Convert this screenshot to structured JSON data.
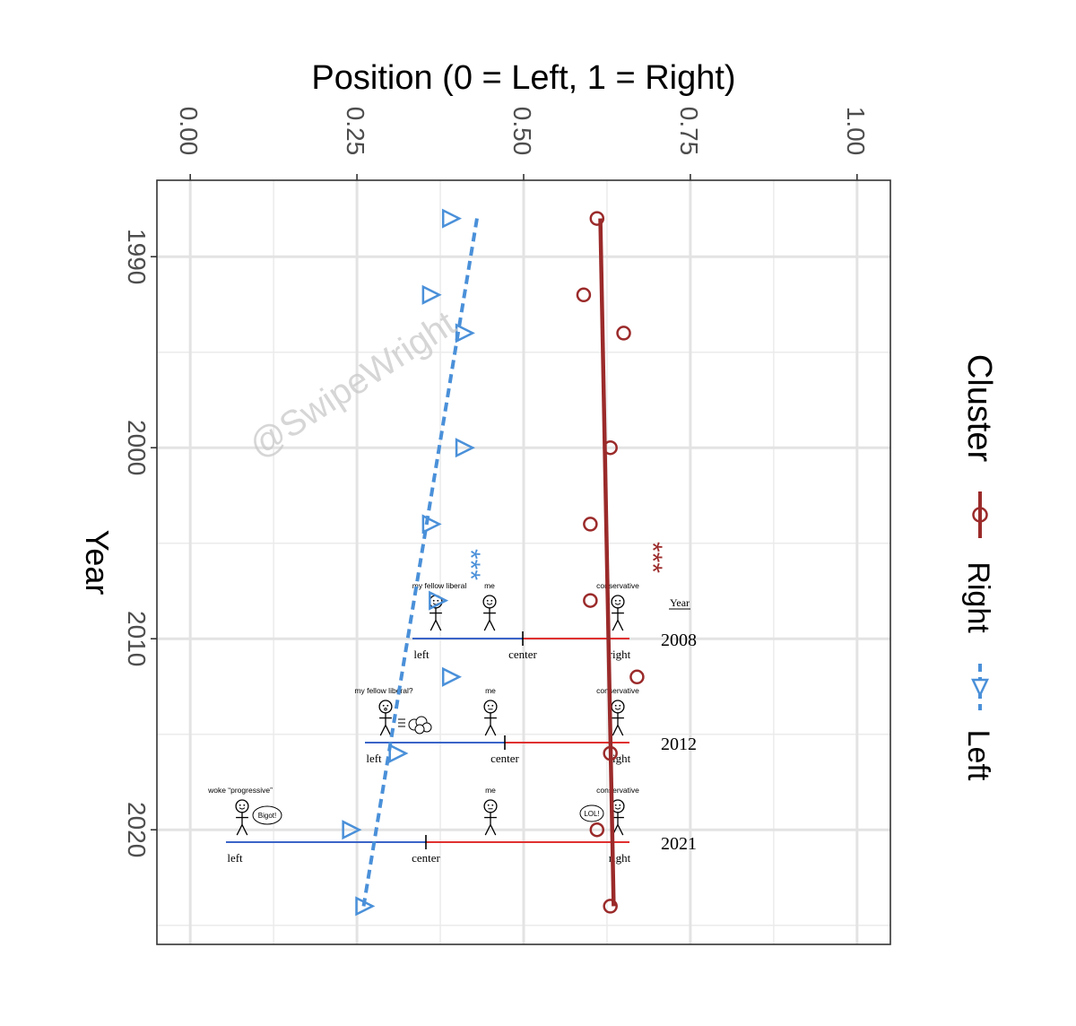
{
  "chart_data": {
    "type": "line",
    "title": "",
    "xlabel": "Position (0 = Left, 1 = Right)",
    "ylabel": "Year",
    "x_ticks": [
      "0.00",
      "0.25",
      "0.50",
      "0.75",
      "1.00"
    ],
    "x_tick_values": [
      0,
      0.25,
      0.5,
      0.75,
      1
    ],
    "y_ticks": [
      "1990",
      "2000",
      "2010",
      "2020"
    ],
    "y_tick_values": [
      1990,
      2000,
      2010,
      2020
    ],
    "xlim": [
      -0.05,
      1.05
    ],
    "ylim": [
      1986,
      2026
    ],
    "grid": true,
    "legend": {
      "title": "Cluster",
      "placement": "right",
      "entries": [
        "Right",
        "Left"
      ]
    },
    "series": [
      {
        "name": "Right",
        "color": "#9b2a2a",
        "marker": "circle",
        "line": "solid",
        "points": [
          {
            "year": 1988,
            "x": 0.61
          },
          {
            "year": 1992,
            "x": 0.59
          },
          {
            "year": 1994,
            "x": 0.65
          },
          {
            "year": 2000,
            "x": 0.63
          },
          {
            "year": 2004,
            "x": 0.6
          },
          {
            "year": 2008,
            "x": 0.6
          },
          {
            "year": 2012,
            "x": 0.67
          },
          {
            "year": 2016,
            "x": 0.63
          },
          {
            "year": 2020,
            "x": 0.61
          },
          {
            "year": 2024,
            "x": 0.63
          }
        ],
        "trend": [
          {
            "year": 1988,
            "x": 0.615
          },
          {
            "year": 2024,
            "x": 0.635
          }
        ]
      },
      {
        "name": "Left",
        "color": "#4a90d9",
        "marker": "triangle",
        "line": "dashed",
        "points": [
          {
            "year": 1988,
            "x": 0.39
          },
          {
            "year": 1992,
            "x": 0.36
          },
          {
            "year": 1994,
            "x": 0.41
          },
          {
            "year": 2000,
            "x": 0.41
          },
          {
            "year": 2004,
            "x": 0.36
          },
          {
            "year": 2008,
            "x": 0.37
          },
          {
            "year": 2012,
            "x": 0.39
          },
          {
            "year": 2016,
            "x": 0.31
          },
          {
            "year": 2020,
            "x": 0.24
          },
          {
            "year": 2024,
            "x": 0.26
          }
        ],
        "trend": [
          {
            "year": 1988,
            "x": 0.43
          },
          {
            "year": 2024,
            "x": 0.26
          }
        ]
      }
    ],
    "annotations": {
      "significance": "***",
      "watermark": "@SwipeWright",
      "year_header": "Year",
      "panels": [
        {
          "year_label": "2008",
          "left_label": "left",
          "center_label": "center",
          "right_label": "right",
          "left_figure": "my fellow liberal",
          "me_figure": "me",
          "right_figure": "conservative",
          "speech": ""
        },
        {
          "year_label": "2012",
          "left_label": "left",
          "center_label": "center",
          "right_label": "right",
          "left_figure": "my fellow liberal?",
          "me_figure": "me",
          "right_figure": "conservative",
          "speech": ""
        },
        {
          "year_label": "2021",
          "left_label": "left",
          "center_label": "center",
          "right_label": "right",
          "left_figure": "woke “progressive”",
          "me_figure": "me",
          "right_figure": "conservative",
          "speech_left": "Bigot!",
          "speech_right": "LOL!"
        }
      ]
    }
  }
}
